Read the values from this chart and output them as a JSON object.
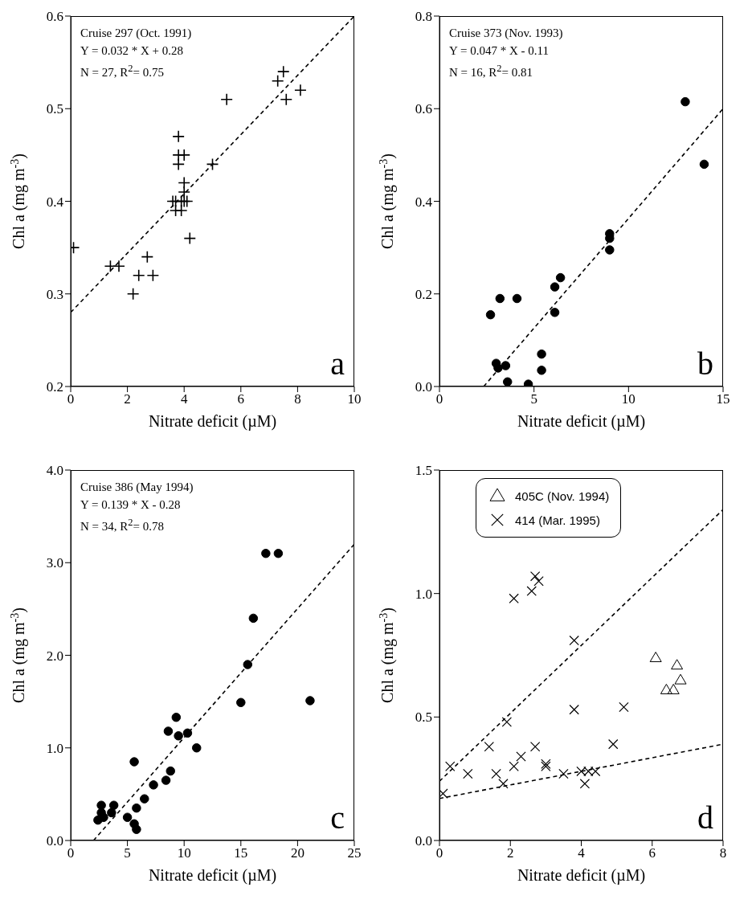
{
  "chart_data": [
    {
      "type": "scatter",
      "xlabel": "Nitrate deficit (µM)",
      "ylabel": "Chl a (mg m$^{-3}$)",
      "xlim": [
        0,
        10
      ],
      "xticks": [
        0,
        2,
        4,
        6,
        8,
        10
      ],
      "ylim": [
        0.2,
        0.6
      ],
      "yticks": [
        0.2,
        0.3,
        0.4,
        0.5,
        0.6
      ],
      "grid": false,
      "legend": false,
      "annotations": [
        "Cruise 297 (Oct. 1991)",
        "Y = 0.032 * X + 0.28",
        "N = 27, R$^{2}$= 0.75",
        "a"
      ],
      "series": [
        {
          "type": "scatter",
          "marker": "plus",
          "color": "#000000",
          "x": [
            0.1,
            1.4,
            1.7,
            2.2,
            2.4,
            2.7,
            2.9,
            3.6,
            3.7,
            3.7,
            3.8,
            3.8,
            3.8,
            3.9,
            3.9,
            4.0,
            4.0,
            4.0,
            4.0,
            4.1,
            4.2,
            5.0,
            5.5,
            7.3,
            7.5,
            7.6,
            8.1
          ],
          "values": [
            0.35,
            0.33,
            0.33,
            0.3,
            0.32,
            0.34,
            0.32,
            0.4,
            0.39,
            0.4,
            0.47,
            0.45,
            0.44,
            0.39,
            0.4,
            0.45,
            0.42,
            0.41,
            0.4,
            0.4,
            0.36,
            0.44,
            0.51,
            0.53,
            0.54,
            0.51,
            0.52
          ]
        },
        {
          "type": "line",
          "marker": "none",
          "line_style": "dashed",
          "color": "#000000",
          "x": [
            0,
            10
          ],
          "values": [
            0.28,
            0.6
          ]
        }
      ]
    },
    {
      "type": "scatter",
      "xlabel": "Nitrate deficit (µM)",
      "ylabel": "Chl a (mg m$^{-3}$)",
      "xlim": [
        0,
        15
      ],
      "xticks": [
        0,
        5,
        10,
        15
      ],
      "ylim": [
        0,
        0.8
      ],
      "yticks": [
        {
          "value": 0,
          "label": "0.0"
        },
        0.2,
        0.4,
        0.6,
        0.8
      ],
      "grid": false,
      "legend": false,
      "annotations": [
        "Cruise 373 (Nov. 1993)",
        "Y = 0.047 * X - 0.11",
        "N = 16, R$^{2}$= 0.81",
        "b"
      ],
      "series": [
        {
          "type": "scatter",
          "marker": "circle",
          "color": "#000000",
          "x": [
            2.7,
            3.0,
            3.1,
            3.2,
            3.5,
            3.6,
            4.1,
            4.7,
            5.4,
            5.4,
            6.1,
            6.1,
            6.4,
            9.0,
            9.0,
            9.0,
            13.0,
            14.0
          ],
          "values": [
            0.155,
            0.05,
            0.04,
            0.19,
            0.045,
            0.01,
            0.19,
            0.005,
            0.07,
            0.035,
            0.215,
            0.16,
            0.235,
            0.33,
            0.32,
            0.295,
            0.615,
            0.48
          ]
        },
        {
          "type": "line",
          "marker": "none",
          "line_style": "dashed",
          "color": "#000000",
          "x": [
            2.34,
            15
          ],
          "values": [
            0,
            0.6
          ]
        }
      ]
    },
    {
      "type": "scatter",
      "xlabel": "Nitrate deficit (µM)",
      "ylabel": "Chl a (mg m$^{-3}$)",
      "xlim": [
        0,
        25
      ],
      "xticks": [
        0,
        5,
        10,
        15,
        20,
        25
      ],
      "ylim": [
        0,
        4
      ],
      "yticks": [
        {
          "value": 0,
          "label": "0.0"
        },
        {
          "value": 1,
          "label": "1.0"
        },
        {
          "value": 2,
          "label": "2.0"
        },
        {
          "value": 3,
          "label": "3.0"
        },
        {
          "value": 4,
          "label": "4.0"
        }
      ],
      "grid": false,
      "legend": false,
      "annotations": [
        "Cruise 386 (May 1994)",
        "Y = 0.139 * X - 0.28",
        "N = 34, R$^{2}$= 0.78",
        "c"
      ],
      "series": [
        {
          "type": "scatter",
          "marker": "circle",
          "color": "#000000",
          "x": [
            2.4,
            2.6,
            2.7,
            2.7,
            2.9,
            3.6,
            3.7,
            3.8,
            5.0,
            5.6,
            5.6,
            5.8,
            5.8,
            6.5,
            7.3,
            8.4,
            8.6,
            8.8,
            9.3,
            9.5,
            10.3,
            11.1,
            15.0,
            15.6,
            16.1,
            17.2,
            18.3,
            21.1
          ],
          "values": [
            0.22,
            null,
            0.3,
            0.38,
            0.25,
            0.3,
            null,
            0.38,
            0.25,
            0.18,
            0.85,
            0.12,
            0.35,
            0.45,
            0.6,
            0.65,
            1.18,
            0.75,
            1.33,
            1.13,
            1.16,
            1.0,
            1.49,
            1.9,
            2.4,
            3.1,
            3.1,
            1.51
          ]
        },
        {
          "type": "line",
          "marker": "none",
          "line_style": "dashed",
          "color": "#000000",
          "x": [
            2.01,
            25
          ],
          "values": [
            0,
            3.2
          ]
        }
      ]
    },
    {
      "type": "scatter",
      "xlabel": "Nitrate deficit (µM)",
      "ylabel": "Chl a (mg m$^{-3}$)",
      "xlim": [
        0,
        8
      ],
      "xticks": [
        0,
        2,
        4,
        6,
        8
      ],
      "ylim": [
        0,
        1.5
      ],
      "yticks": [
        {
          "value": 0,
          "label": "0.0"
        },
        0.5,
        {
          "value": 1,
          "label": "1.0"
        },
        1.5
      ],
      "grid": false,
      "legend": "top",
      "annotations": [
        "d"
      ],
      "series": [
        {
          "type": "scatter",
          "name": "405C (Nov. 1994)",
          "marker": "triangle",
          "color": "#000000",
          "x": [
            6.1,
            6.4,
            6.6,
            6.7,
            6.8
          ],
          "values": [
            0.74,
            0.61,
            0.61,
            0.71,
            0.65
          ]
        },
        {
          "type": "scatter",
          "name": "414 (Mar. 1995)",
          "marker": "cross",
          "color": "#000000",
          "x": [
            0.1,
            0.3,
            0.8,
            1.4,
            1.6,
            1.8,
            1.9,
            2.1,
            2.1,
            2.3,
            2.6,
            2.7,
            2.7,
            2.8,
            3.0,
            3.0,
            3.5,
            3.8,
            3.8,
            4.0,
            4.1,
            4.2,
            4.4,
            4.9,
            5.2
          ],
          "values": [
            0.19,
            0.3,
            0.27,
            0.38,
            0.27,
            0.23,
            0.48,
            0.98,
            0.3,
            0.34,
            1.01,
            1.07,
            0.38,
            1.05,
            0.31,
            0.3,
            0.27,
            0.81,
            0.53,
            0.28,
            0.23,
            0.28,
            0.28,
            0.39,
            0.54
          ]
        },
        {
          "type": "line",
          "marker": "none",
          "line_style": "dashed",
          "color": "#000000",
          "x": [
            0,
            8
          ],
          "values": [
            0.24,
            1.34
          ]
        },
        {
          "type": "line",
          "marker": "none",
          "line_style": "dashed",
          "color": "#000000",
          "x": [
            0,
            8
          ],
          "values": [
            0.17,
            0.39
          ]
        }
      ]
    }
  ]
}
